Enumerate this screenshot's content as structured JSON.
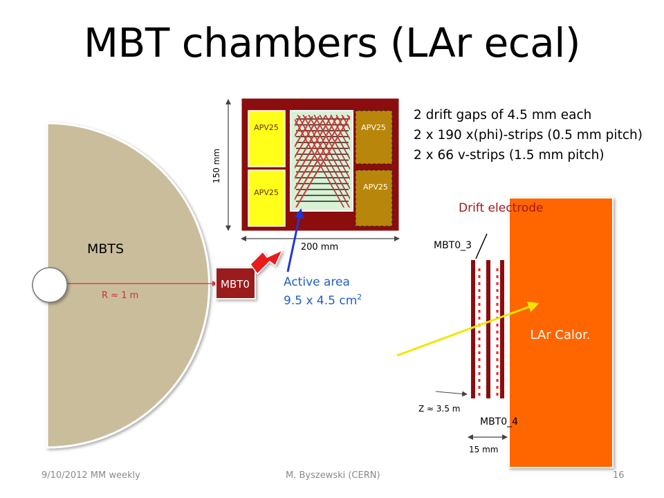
{
  "slide": {
    "title": "MBT chambers (LAr ecal)",
    "specs": [
      "2 drift gaps of 4.5 mm each",
      "2 x 190 x(phi)-strips (0.5 mm pitch)",
      "2 x 66 v-strips (1.5 mm pitch)"
    ],
    "footer": {
      "left": "9/10/2012 MM weekly",
      "center": "M. Byszewski (CERN)",
      "right": "16"
    }
  },
  "mbts": {
    "label": "MBTS",
    "radius_label": "R ≈ 1 m"
  },
  "mbt0": {
    "label": "MBT0"
  },
  "chamber": {
    "apv_labels": [
      "APV25",
      "APV25",
      "APV25",
      "APV25"
    ],
    "height_label": "150 mm",
    "width_label": "200 mm"
  },
  "active_area": {
    "line1": "Active area",
    "line2": "9.5 x 4.5 cm",
    "superscript": "2"
  },
  "side_view": {
    "drift_electrode_label": "Drift electrode",
    "mbt0_3_label": "MBT0_3",
    "mbt0_4_label": "MBT0_4",
    "z_label": "Z ≈ 3.5 m",
    "gap_label": "15 mm",
    "calorimeter_label": "LAr Calor."
  },
  "colors": {
    "disk": "#c9bd9c",
    "mbt0_box": "#9b1c1c",
    "chamber_frame": "#8b0d0d",
    "apv_yellow": "#ffff1a",
    "apv_tan": "#b8860b",
    "active_area": "#d7f2d4",
    "calorimeter": "#ff6600",
    "blue_text": "#1f5fbf",
    "dark_red_text": "#a3151a",
    "ray": "#f2e600"
  }
}
